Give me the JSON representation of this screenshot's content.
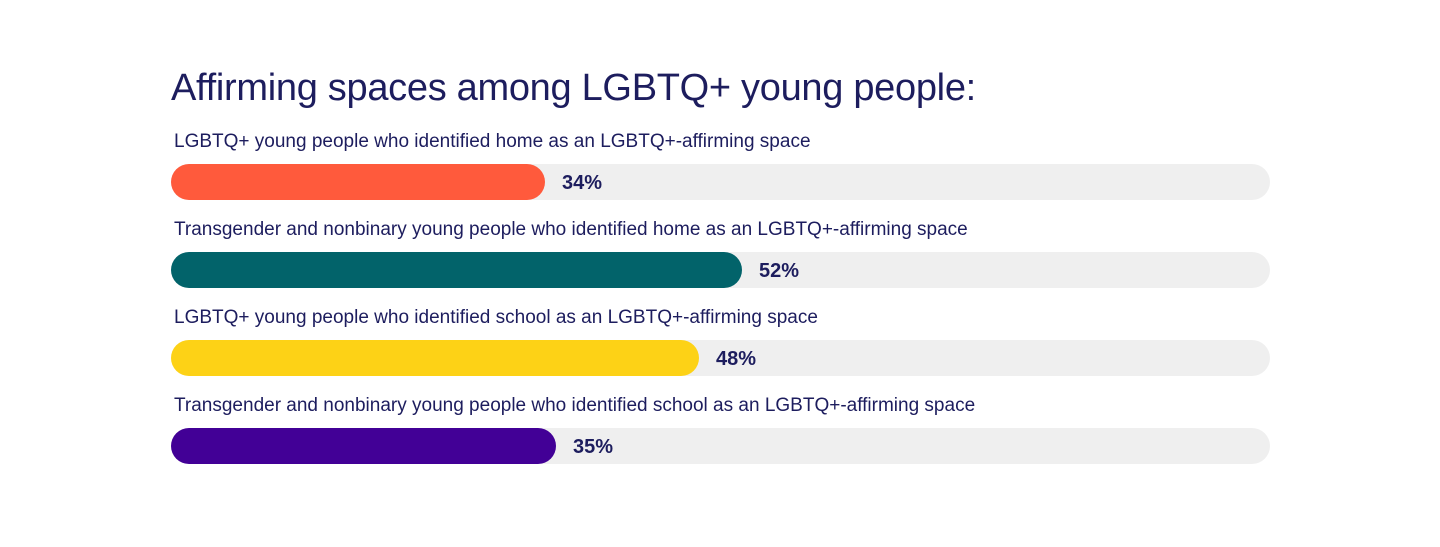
{
  "title": "Affirming spaces among LGBTQ+ young people:",
  "chart_data": {
    "type": "bar",
    "orientation": "horizontal",
    "title": "Affirming spaces among LGBTQ+ young people:",
    "xlim": [
      0,
      100
    ],
    "unit": "%",
    "grid": false,
    "categories": [
      "LGBTQ+ young people who identified home as an LGBTQ+-affirming space",
      "Transgender and nonbinary young people who identified home as an LGBTQ+-affirming space",
      "LGBTQ+ young people who identified school as an LGBTQ+-affirming space",
      "Transgender and nonbinary young people who identified school as an LGBTQ+-affirming space"
    ],
    "values": [
      34,
      52,
      48,
      35
    ],
    "value_labels": [
      "34%",
      "52%",
      "48%",
      "35%"
    ],
    "colors": [
      "#ff5a3c",
      "#02636a",
      "#fdd216",
      "#420096"
    ],
    "track_color": "#efefef"
  }
}
